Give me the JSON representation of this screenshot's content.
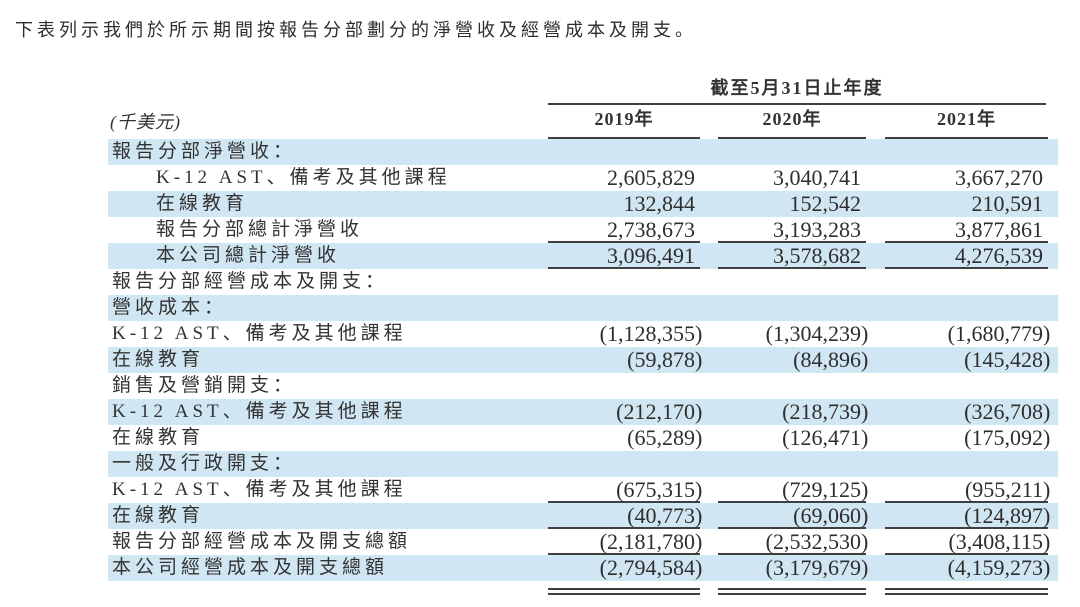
{
  "intro": "下表列示我們於所示期間按報告分部劃分的淨營收及經營成本及開支。",
  "table": {
    "unit_label": "(千美元)",
    "period_header": "截至5月31日止年度",
    "years": [
      "2019年",
      "2020年",
      "2021年"
    ],
    "rows": [
      {
        "label": "報告分部淨營收："
      },
      {
        "label": "K-12 AST、備考及其他課程",
        "values": [
          "2,605,829",
          "3,040,741",
          "3,667,270"
        ]
      },
      {
        "label": "在線教育",
        "values": [
          "132,844",
          "152,542",
          "210,591"
        ]
      },
      {
        "label": "報告分部總計淨營收",
        "values": [
          "2,738,673",
          "3,193,283",
          "3,877,861"
        ]
      },
      {
        "label": "本公司總計淨營收",
        "values": [
          "3,096,491",
          "3,578,682",
          "4,276,539"
        ]
      },
      {
        "label": "報告分部經營成本及開支："
      },
      {
        "label": "營收成本："
      },
      {
        "label": "K-12 AST、備考及其他課程",
        "values": [
          "(1,128,355)",
          "(1,304,239)",
          "(1,680,779)"
        ]
      },
      {
        "label": "在線教育",
        "values": [
          "(59,878)",
          "(84,896)",
          "(145,428)"
        ]
      },
      {
        "label": "銷售及營銷開支："
      },
      {
        "label": "K-12 AST、備考及其他課程",
        "values": [
          "(212,170)",
          "(218,739)",
          "(326,708)"
        ]
      },
      {
        "label": "在線教育",
        "values": [
          "(65,289)",
          "(126,471)",
          "(175,092)"
        ]
      },
      {
        "label": "一般及行政開支："
      },
      {
        "label": "K-12 AST、備考及其他課程",
        "values": [
          "(675,315)",
          "(729,125)",
          "(955,211)"
        ]
      },
      {
        "label": "在線教育",
        "values": [
          "(40,773)",
          "(69,060)",
          "(124,897)"
        ]
      },
      {
        "label": "報告分部經營成本及開支總額",
        "values": [
          "(2,181,780)",
          "(2,532,530)",
          "(3,408,115)"
        ]
      },
      {
        "label": "本公司經營成本及開支總額",
        "values": [
          "(2,794,584)",
          "(3,179,679)",
          "(4,159,273)"
        ]
      }
    ],
    "colors": {
      "band": "#d0e6f2",
      "rule": "#3f3f3f",
      "text": "#333333"
    }
  }
}
